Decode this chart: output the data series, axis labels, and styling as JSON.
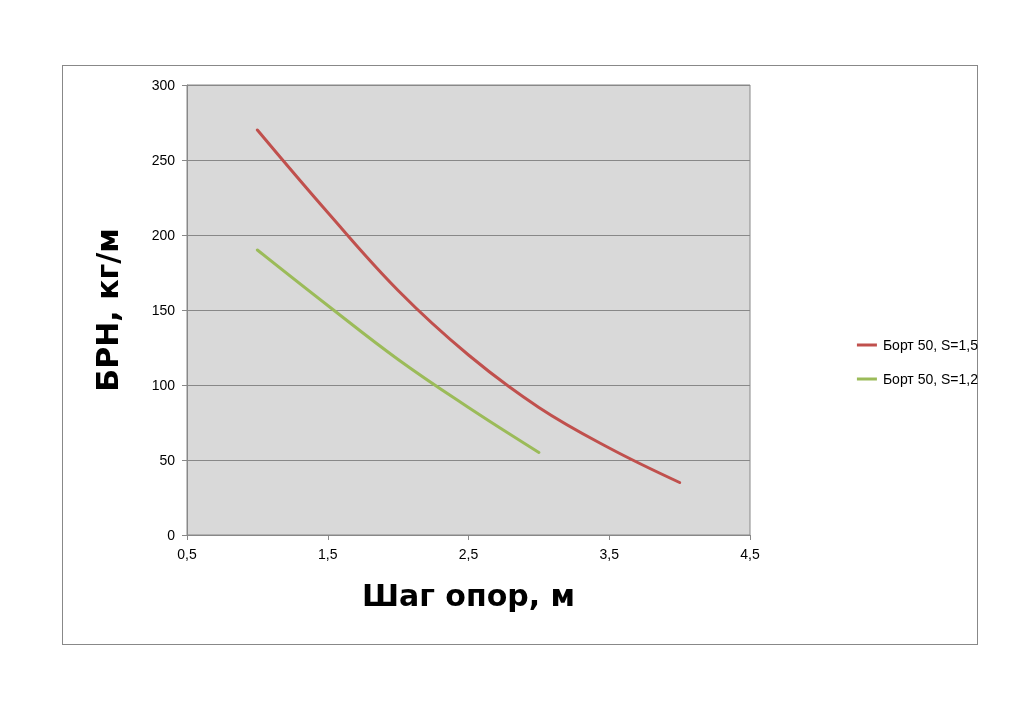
{
  "chart_data": {
    "type": "line",
    "xlabel": "Шаг опор, м",
    "ylabel": "БРН, кг/м",
    "series": [
      {
        "name": "Борт 50, S=1,5",
        "color": "#c0504d",
        "x": [
          1,
          1.5,
          2,
          2.5,
          3,
          3.5,
          4
        ],
        "values": [
          270,
          215,
          163,
          120,
          85,
          58,
          35
        ]
      },
      {
        "name": "Борт 50, S=1,2",
        "color": "#9bbb59",
        "x": [
          1,
          1.5,
          2,
          2.5,
          3
        ],
        "values": [
          190,
          153,
          117,
          85,
          55
        ]
      }
    ],
    "xlim": [
      0.5,
      4.5
    ],
    "xticks": [
      {
        "value": 0.5,
        "label": "0,5"
      },
      {
        "value": 1.5,
        "label": "1,5"
      },
      {
        "value": 2.5,
        "label": "2,5"
      },
      {
        "value": 3.5,
        "label": "3,5"
      },
      {
        "value": 4.5,
        "label": "4,5"
      }
    ],
    "ylim": [
      0,
      300
    ],
    "yticks": [
      0,
      50,
      100,
      150,
      200,
      250,
      300
    ],
    "grid": "y",
    "legend": "right",
    "marker": "none",
    "line_style": "solid"
  }
}
